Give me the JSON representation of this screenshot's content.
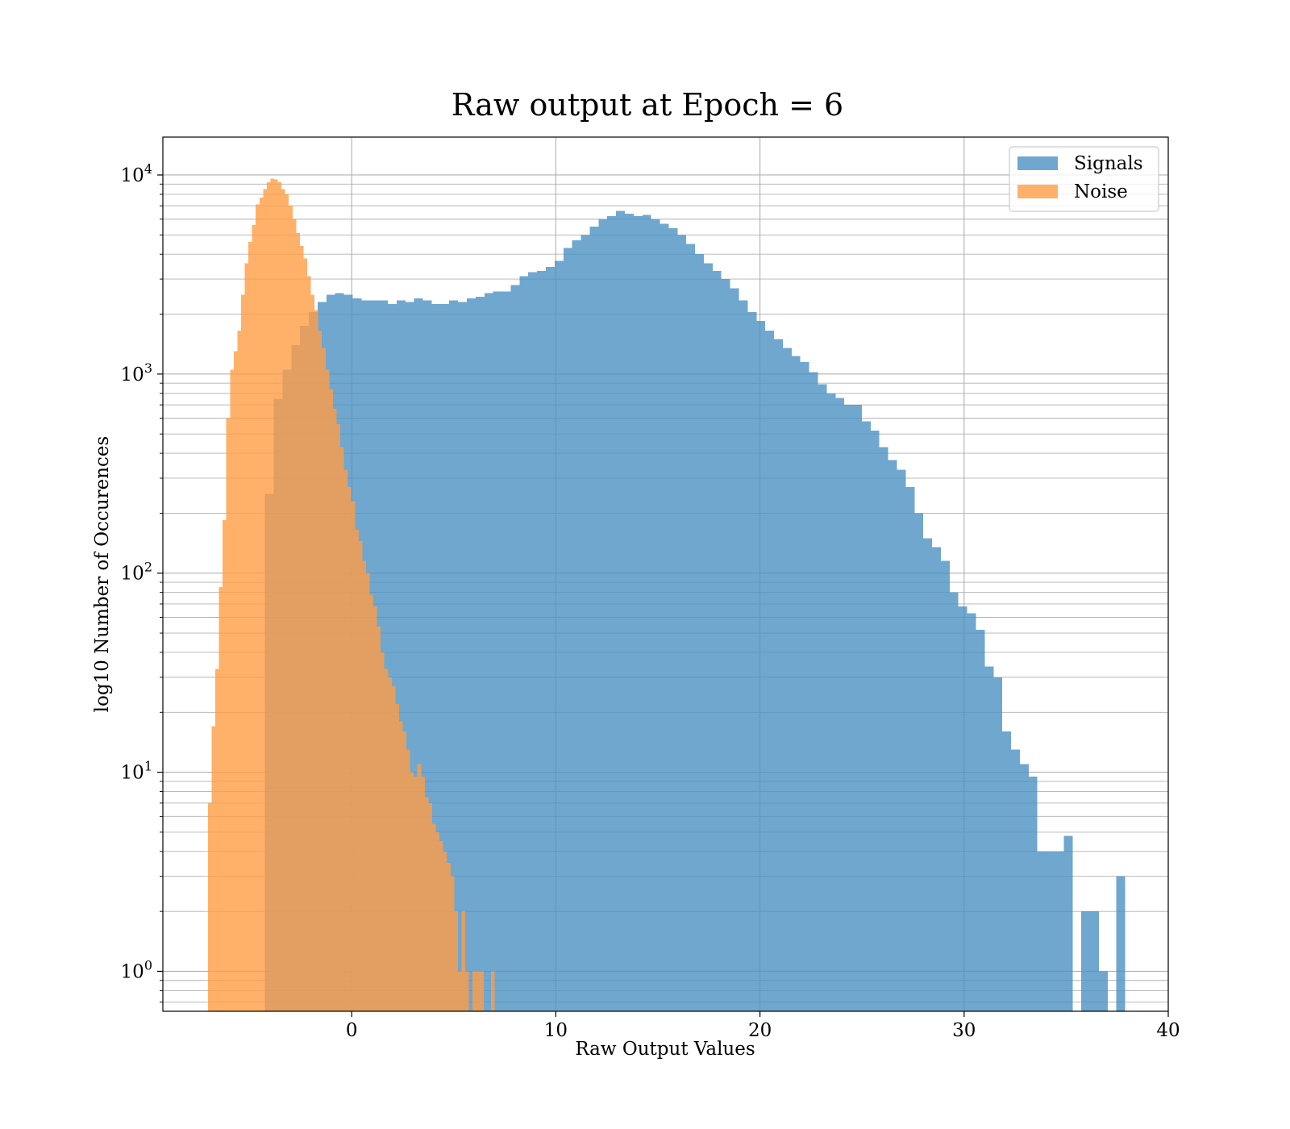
{
  "chart_data": {
    "type": "bar",
    "title": "Raw output at Epoch = 6",
    "xlabel": "Raw Output Values",
    "ylabel": "log10 Number of Occurences",
    "xlim": [
      -9.25,
      40
    ],
    "ylim": [
      0.63,
      15500
    ],
    "yscale": "log",
    "grid": true,
    "legend_position": "top-right",
    "xticks": [
      0,
      10,
      20,
      30,
      40
    ],
    "xtick_labels": [
      "0",
      "10",
      "20",
      "30",
      "40"
    ],
    "ytick_exponents": [
      0,
      1,
      2,
      3,
      4
    ],
    "ytick_base": "10",
    "colors": {
      "signals": "#4c91c3",
      "noise": "#ff9e45"
    },
    "series": [
      {
        "name": "Signals",
        "bin_edges": [
          -4.25,
          -3.82,
          -3.39,
          -2.96,
          -2.53,
          -2.1,
          -1.67,
          -1.24,
          -0.81,
          -0.38,
          0.05,
          0.48,
          0.91,
          1.34,
          1.77,
          2.2,
          2.63,
          3.06,
          3.49,
          3.92,
          4.35,
          4.78,
          5.21,
          5.64,
          6.07,
          6.5,
          6.93,
          7.36,
          7.79,
          8.22,
          8.65,
          9.08,
          9.51,
          9.94,
          10.37,
          10.8,
          11.23,
          11.66,
          12.09,
          12.52,
          12.95,
          13.38,
          13.81,
          14.24,
          14.67,
          15.1,
          15.53,
          15.96,
          16.39,
          16.82,
          17.25,
          17.68,
          18.11,
          18.54,
          18.97,
          19.4,
          19.83,
          20.26,
          20.69,
          21.12,
          21.55,
          21.98,
          22.41,
          22.84,
          23.27,
          23.7,
          24.13,
          24.56,
          24.99,
          25.42,
          25.85,
          26.28,
          26.71,
          27.14,
          27.57,
          28.0,
          28.43,
          28.86,
          29.29,
          29.72,
          30.15,
          30.58,
          31.01,
          31.44,
          31.87,
          32.3,
          32.73,
          33.16,
          33.59,
          34.02,
          34.45,
          34.88,
          35.31,
          35.74,
          36.17,
          36.6,
          37.03,
          37.46,
          37.89
        ],
        "values": [
          250,
          750,
          1050,
          1400,
          1750,
          2050,
          2300,
          2500,
          2550,
          2500,
          2400,
          2350,
          2350,
          2350,
          2250,
          2350,
          2300,
          2400,
          2350,
          2250,
          2250,
          2350,
          2300,
          2400,
          2450,
          2550,
          2600,
          2600,
          2800,
          3100,
          3250,
          3300,
          3450,
          3700,
          4300,
          4700,
          5000,
          5500,
          6000,
          6200,
          6600,
          6400,
          6200,
          6300,
          6000,
          5700,
          5400,
          5000,
          4500,
          4000,
          3600,
          3300,
          3000,
          2700,
          2350,
          2050,
          1850,
          1650,
          1500,
          1350,
          1230,
          1150,
          1020,
          890,
          800,
          760,
          700,
          700,
          580,
          520,
          430,
          370,
          330,
          270,
          200,
          150,
          135,
          115,
          80,
          68,
          63,
          52,
          34,
          30,
          16,
          13,
          11,
          9.5,
          4,
          4,
          4,
          4.8,
          0,
          2,
          2,
          1,
          0,
          3
        ]
      },
      {
        "name": "Noise",
        "bin_edges": [
          -7.04,
          -6.86,
          -6.68,
          -6.5,
          -6.32,
          -6.14,
          -5.96,
          -5.78,
          -5.6,
          -5.42,
          -5.24,
          -5.06,
          -4.88,
          -4.7,
          -4.52,
          -4.34,
          -4.16,
          -3.98,
          -3.8,
          -3.62,
          -3.44,
          -3.26,
          -3.08,
          -2.9,
          -2.72,
          -2.54,
          -2.36,
          -2.18,
          -2.0,
          -1.82,
          -1.64,
          -1.46,
          -1.28,
          -1.1,
          -0.92,
          -0.74,
          -0.56,
          -0.38,
          -0.2,
          -0.02,
          0.16,
          0.34,
          0.52,
          0.7,
          0.88,
          1.06,
          1.24,
          1.42,
          1.6,
          1.78,
          1.96,
          2.14,
          2.32,
          2.5,
          2.68,
          2.86,
          3.04,
          3.22,
          3.4,
          3.58,
          3.76,
          3.94,
          4.12,
          4.3,
          4.48,
          4.66,
          4.84,
          5.02,
          5.2,
          5.38,
          5.56,
          5.74,
          5.92,
          6.1,
          6.28,
          6.46,
          6.64,
          6.82,
          7.0,
          7.18,
          7.36,
          7.54,
          7.72,
          7.9,
          8.08,
          8.26,
          8.44,
          8.62
        ],
        "values": [
          7,
          17,
          33,
          85,
          185,
          600,
          1050,
          1300,
          1650,
          2500,
          3600,
          4600,
          5600,
          7100,
          7700,
          8500,
          9200,
          9600,
          9500,
          9200,
          8500,
          8000,
          7000,
          6000,
          5100,
          4400,
          3800,
          3100,
          2500,
          2100,
          1650,
          1350,
          1050,
          840,
          670,
          560,
          430,
          330,
          270,
          230,
          165,
          145,
          115,
          100,
          78,
          68,
          54,
          40,
          33,
          30,
          27,
          22,
          18,
          16,
          13,
          10,
          9.5,
          11,
          9.5,
          7.5,
          7,
          5.5,
          5,
          4.5,
          4,
          3.5,
          3,
          2,
          1,
          2,
          1,
          0,
          1,
          1,
          1,
          0.5,
          0.5,
          1,
          0.5,
          0.5,
          0,
          0,
          0,
          0,
          0,
          0,
          0
        ]
      }
    ]
  }
}
